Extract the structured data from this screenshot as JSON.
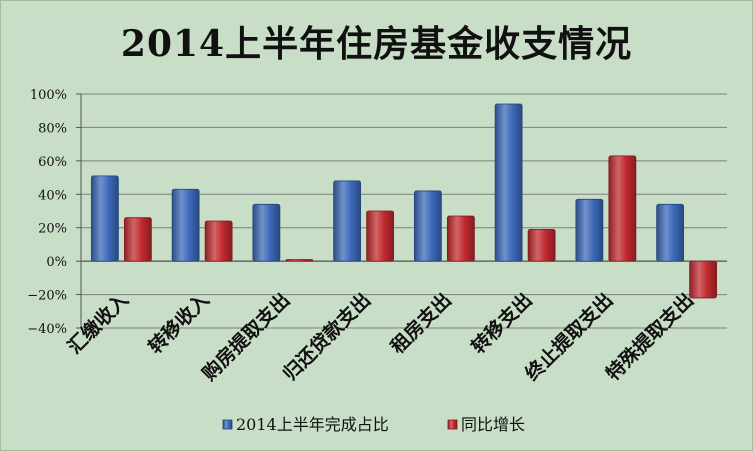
{
  "chart_data": {
    "type": "bar",
    "title": "2014上半年住房基金收支情况",
    "categories": [
      "汇缴收入",
      "转移收入",
      "购房提取支出",
      "归还贷款支出",
      "租房支出",
      "转移支出",
      "终止提取支出",
      "特殊提取支出"
    ],
    "series": [
      {
        "name": "2014上半年完成占比",
        "values": [
          51,
          43,
          34,
          48,
          42,
          94,
          37,
          34
        ],
        "color": "#3a68b8"
      },
      {
        "name": "同比增长",
        "values": [
          26,
          24,
          1,
          30,
          27,
          19,
          63,
          -22
        ],
        "color": "#c0292f"
      }
    ],
    "ylim": [
      -40,
      100
    ],
    "yticks": [
      -40,
      -20,
      0,
      20,
      40,
      60,
      80,
      100
    ],
    "ytick_labels": [
      "−40%",
      "−20%",
      "0%",
      "20%",
      "40%",
      "60%",
      "80%",
      "100%"
    ],
    "xlabel": "",
    "ylabel": "",
    "grid": true,
    "legend": "bottom"
  }
}
